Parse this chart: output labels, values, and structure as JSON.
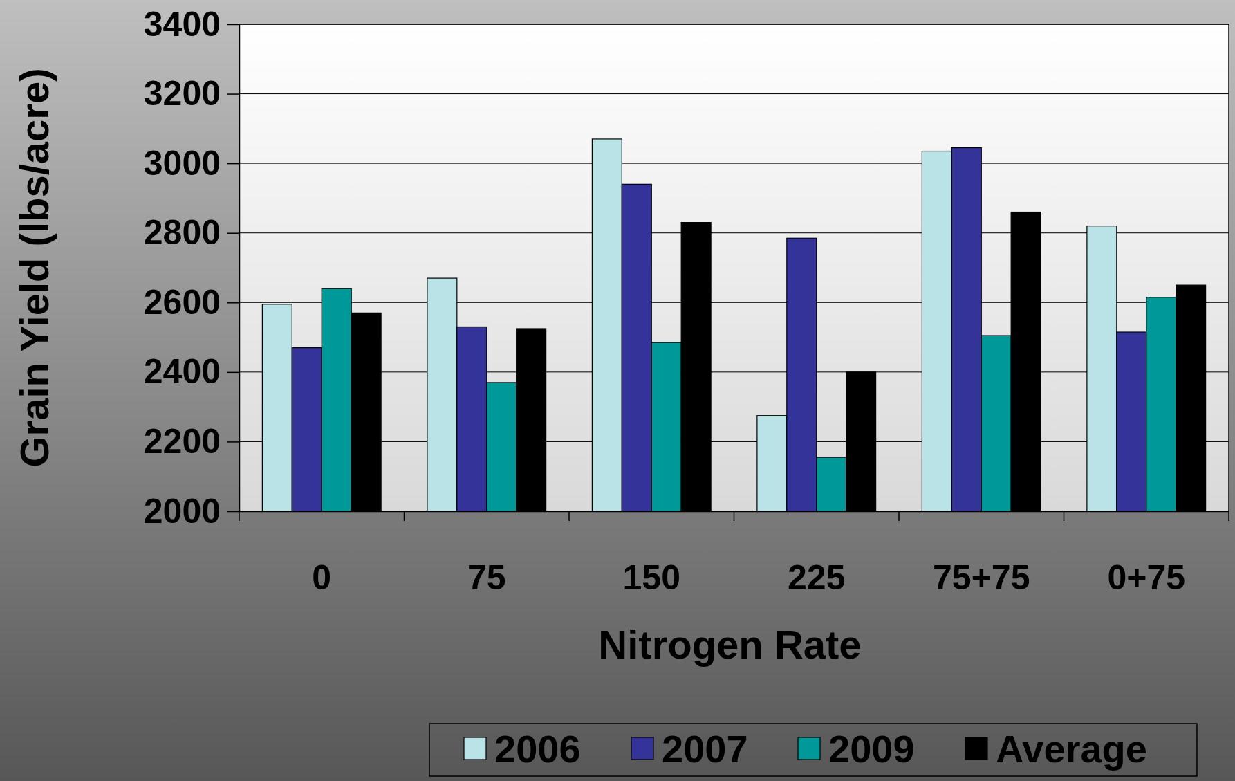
{
  "chart_data": {
    "type": "bar",
    "xlabel": "Nitrogen Rate",
    "ylabel": "Grain Yield (lbs/acre)",
    "categories": [
      "0",
      "75",
      "150",
      "225",
      "75+75",
      "0+75"
    ],
    "series": [
      {
        "name": "2006",
        "color": "#b9e3e6",
        "values": [
          2595,
          2670,
          3070,
          2275,
          3035,
          2820
        ]
      },
      {
        "name": "2007",
        "color": "#333399",
        "values": [
          2470,
          2530,
          2940,
          2785,
          3045,
          2515
        ]
      },
      {
        "name": "2009",
        "color": "#009999",
        "values": [
          2640,
          2370,
          2485,
          2155,
          2505,
          2615
        ]
      },
      {
        "name": "Average",
        "color": "#000000",
        "values": [
          2570,
          2525,
          2830,
          2400,
          2860,
          2650
        ]
      }
    ],
    "ylim": [
      2000,
      3400
    ],
    "yticks": [
      2000,
      2200,
      2400,
      2600,
      2800,
      3000,
      3200,
      3400
    ],
    "grid": "y",
    "legend": "bottom"
  }
}
